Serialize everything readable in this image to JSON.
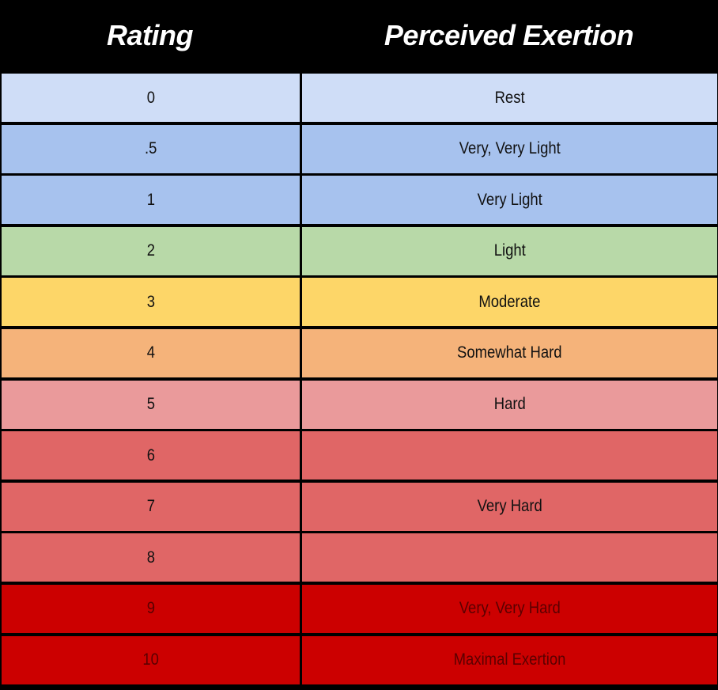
{
  "header": {
    "rating": "Rating",
    "exertion": "Perceived Exertion"
  },
  "rows": [
    {
      "rating": "0",
      "exertion": "Rest",
      "color": "#cfddf7"
    },
    {
      "rating": ".5",
      "exertion": "Very, Very Light",
      "color": "#a7c2ee"
    },
    {
      "rating": "1",
      "exertion": "Very Light",
      "color": "#a7c2ee"
    },
    {
      "rating": "2",
      "exertion": "Light",
      "color": "#b8d9a8"
    },
    {
      "rating": "3",
      "exertion": "Moderate",
      "color": "#fdd668"
    },
    {
      "rating": "4",
      "exertion": "Somewhat Hard",
      "color": "#f5b37a"
    },
    {
      "rating": "5",
      "exertion": "Hard",
      "color": "#ea9a9b"
    },
    {
      "rating": "6",
      "exertion": "",
      "color": "#e06666"
    },
    {
      "rating": "7",
      "exertion": "Very Hard",
      "color": "#e06666"
    },
    {
      "rating": "8",
      "exertion": "",
      "color": "#e06666"
    },
    {
      "rating": "9",
      "exertion": "Very, Very Hard",
      "color": "#cc0000"
    },
    {
      "rating": "10",
      "exertion": "Maximal Exertion",
      "color": "#cc0000"
    }
  ]
}
